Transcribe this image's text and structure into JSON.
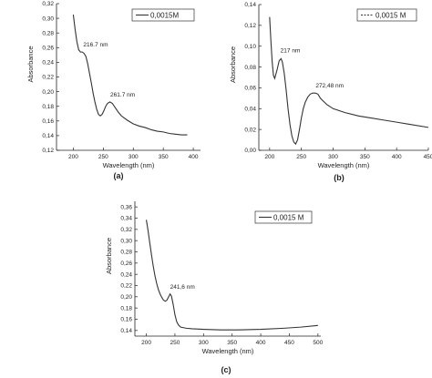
{
  "chart_data": [
    {
      "type": "line",
      "panel_label": "(a)",
      "xlabel": "Wavelength (nm)",
      "ylabel": "Absorbance",
      "xlim": [
        172,
        412
      ],
      "ylim": [
        0.12,
        0.32
      ],
      "x_ticks": [
        "200",
        "250",
        "300",
        "350",
        "400"
      ],
      "y_ticks": [
        "0,12",
        "0,14",
        "0,16",
        "0,18",
        "0,20",
        "0,22",
        "0,24",
        "0,26",
        "0,28",
        "0,30",
        "0,32"
      ],
      "legend": {
        "entries": [
          "0,0015M"
        ],
        "position": "top-right"
      },
      "series": [
        {
          "name": "0,0015M",
          "dash": false,
          "x": [
            200,
            203,
            206,
            209,
            212,
            215,
            218,
            221,
            224,
            227,
            230,
            233,
            236,
            239,
            242,
            245,
            248,
            251,
            254,
            257,
            261,
            265,
            270,
            275,
            280,
            290,
            300,
            310,
            320,
            330,
            340,
            350,
            360,
            370,
            380,
            390
          ],
          "y": [
            0.305,
            0.285,
            0.268,
            0.257,
            0.254,
            0.254,
            0.252,
            0.248,
            0.238,
            0.225,
            0.212,
            0.198,
            0.186,
            0.176,
            0.169,
            0.167,
            0.169,
            0.174,
            0.18,
            0.184,
            0.186,
            0.184,
            0.178,
            0.172,
            0.167,
            0.161,
            0.156,
            0.153,
            0.151,
            0.148,
            0.146,
            0.145,
            0.143,
            0.142,
            0.141,
            0.141
          ]
        }
      ],
      "annotations": [
        {
          "text": "216.7 nm",
          "x": 216.7,
          "y": 0.254
        },
        {
          "text": "261.7 nm",
          "x": 261.7,
          "y": 0.186
        }
      ]
    },
    {
      "type": "line",
      "panel_label": "(b)",
      "xlabel": "Wavelength (nm)",
      "ylabel": "Absorbance",
      "xlim": [
        183,
        450
      ],
      "ylim": [
        0.0,
        0.14
      ],
      "x_ticks": [
        "200",
        "250",
        "300",
        "350",
        "400",
        "450"
      ],
      "y_ticks": [
        "0,00",
        "0,02",
        "0,04",
        "0,06",
        "0,08",
        "0,10",
        "0,12",
        "0,14"
      ],
      "legend": {
        "entries": [
          "0,0015 M"
        ],
        "position": "top-right"
      },
      "series": [
        {
          "name": "0,0015 M",
          "dash": true,
          "x": [
            200,
            202,
            204,
            206,
            208,
            212,
            215,
            218,
            220,
            223,
            226,
            229,
            232,
            235,
            238,
            241,
            244,
            247,
            250,
            253,
            256,
            260,
            264,
            268,
            272,
            276,
            280,
            290,
            300,
            320,
            340,
            360,
            380,
            400,
            420,
            450
          ],
          "y": [
            0.128,
            0.105,
            0.085,
            0.072,
            0.069,
            0.078,
            0.086,
            0.088,
            0.085,
            0.074,
            0.058,
            0.04,
            0.025,
            0.014,
            0.008,
            0.006,
            0.01,
            0.02,
            0.031,
            0.04,
            0.046,
            0.051,
            0.054,
            0.055,
            0.055,
            0.054,
            0.05,
            0.044,
            0.04,
            0.036,
            0.033,
            0.031,
            0.029,
            0.027,
            0.025,
            0.022
          ]
        }
      ],
      "annotations": [
        {
          "text": "217 nm",
          "x": 217,
          "y": 0.088
        },
        {
          "text": "272,48 nm",
          "x": 272.48,
          "y": 0.055
        }
      ]
    },
    {
      "type": "line",
      "panel_label": "(c)",
      "xlabel": "Wavelength (nm)",
      "ylabel": "Absorbance",
      "xlim": [
        180,
        505
      ],
      "ylim": [
        0.13,
        0.37
      ],
      "x_ticks": [
        "200",
        "250",
        "300",
        "350",
        "400",
        "450",
        "500"
      ],
      "y_ticks": [
        "0,14",
        "0,16",
        "0,18",
        "0,20",
        "0,22",
        "0,24",
        "0,26",
        "0,28",
        "0,30",
        "0,32",
        "0,34",
        "0,36"
      ],
      "legend": {
        "entries": [
          "0,0015 M"
        ],
        "position": "top-right"
      },
      "series": [
        {
          "name": "0,0015 M",
          "dash": false,
          "x": [
            200,
            203,
            206,
            209,
            212,
            215,
            218,
            221,
            224,
            227,
            230,
            233,
            236,
            239,
            241.6,
            244,
            247,
            250,
            253,
            256,
            260,
            265,
            270,
            280,
            300,
            330,
            360,
            400,
            440,
            470,
            500
          ],
          "y": [
            0.337,
            0.318,
            0.296,
            0.275,
            0.255,
            0.238,
            0.224,
            0.213,
            0.205,
            0.199,
            0.194,
            0.192,
            0.194,
            0.2,
            0.205,
            0.201,
            0.186,
            0.168,
            0.156,
            0.15,
            0.146,
            0.145,
            0.144,
            0.143,
            0.142,
            0.141,
            0.141,
            0.142,
            0.144,
            0.146,
            0.149
          ]
        }
      ],
      "annotations": [
        {
          "text": "241,6 nm",
          "x": 241.6,
          "y": 0.205
        }
      ]
    }
  ]
}
